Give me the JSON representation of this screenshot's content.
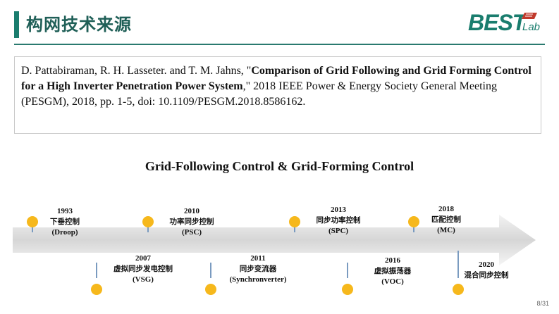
{
  "header": {
    "title": "构网技术来源"
  },
  "logo": {
    "main": "BEST",
    "sub": "Lab"
  },
  "reference": {
    "prefix": "D. Pattabiraman, R. H. Lasseter. and T. M. Jahns, \"",
    "bold_title": "Comparison of Grid Following and Grid Forming Control for a High Inverter Penetration Power System",
    "suffix": ",\" 2018 IEEE Power & Energy Society General Meeting (PESGM), 2018, pp. 1-5, doi: 10.1109/PESGM.2018.8586162."
  },
  "timeline": {
    "title": "Grid-Following Control & Grid-Forming Control",
    "events": [
      {
        "year": "1993",
        "name": "下垂控制",
        "abbr": "(Droop)"
      },
      {
        "year": "2010",
        "name": "功率同步控制",
        "abbr": "(PSC)"
      },
      {
        "year": "2013",
        "name": "同步功率控制",
        "abbr": "(SPC)"
      },
      {
        "year": "2018",
        "name": "匹配控制",
        "abbr": "(MC)"
      },
      {
        "year": "2007",
        "name": "虚拟同步发电控制",
        "abbr": "(VSG)"
      },
      {
        "year": "2011",
        "name": "同步变流器",
        "abbr": "(Synchronverter)"
      },
      {
        "year": "2016",
        "name": "虚拟振荡器",
        "abbr": "(VOC)"
      },
      {
        "year": "2020",
        "name": "混合同步控制",
        "abbr": ""
      }
    ]
  },
  "colors": {
    "accent": "#1a7d6e",
    "dot": "#f6b81c",
    "stem": "#7a9bc0",
    "flag": "#c0392b"
  },
  "page": {
    "number": "8/31"
  }
}
